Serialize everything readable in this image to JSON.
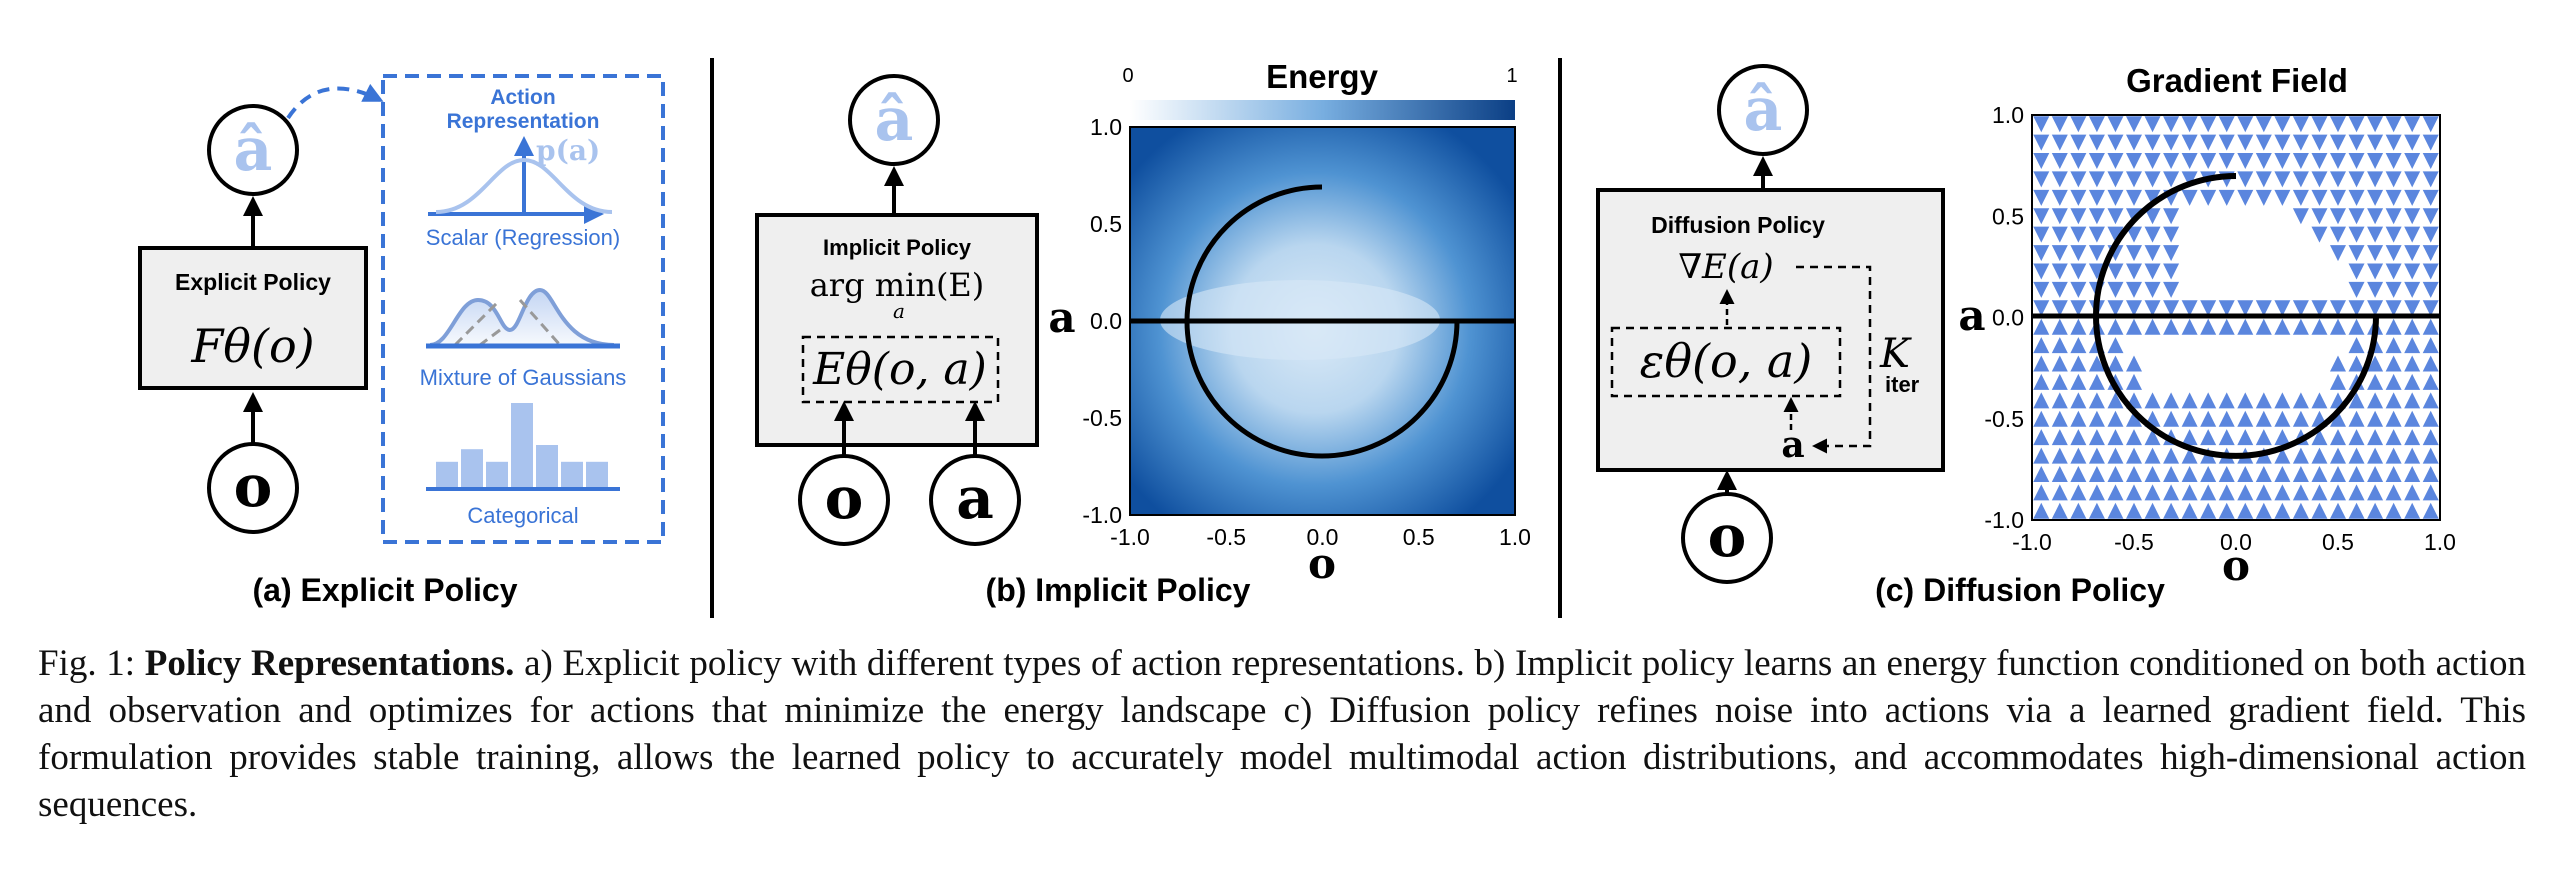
{
  "panels": {
    "a": {
      "caption": "(a) Explicit Policy",
      "box_title": "Explicit Policy",
      "formula": "Fθ(o)",
      "output_node": "â",
      "input_node": "o",
      "representation_title_1": "Action",
      "representation_title_2": "Representation",
      "p_label": "p(a)",
      "rep_labels": [
        "Scalar (Regression)",
        "Mixture of Gaussians",
        "Categorical"
      ],
      "categorical_bar_values": [
        0.3,
        0.45,
        0.3,
        1.0,
        0.5,
        0.3,
        0.3
      ]
    },
    "b": {
      "caption": "(b) Implicit Policy",
      "box_title": "Implicit Policy",
      "argmin": "arg min(E)",
      "argmin_sub": "a",
      "energy_formula": "Eθ(o, a)",
      "output_node": "â",
      "input_nodes": [
        "o",
        "a"
      ],
      "plot": {
        "title": "Energy",
        "colorbar_min": "0",
        "colorbar_max": "1",
        "xlabel": "o",
        "ylabel": "a",
        "xticks": [
          "-1.0",
          "-0.5",
          "0.0",
          "0.5",
          "1.0"
        ],
        "yticks": [
          "1.0",
          "0.5",
          "0.0",
          "-0.5",
          "-1.0"
        ]
      }
    },
    "c": {
      "caption": "(c) Diffusion Policy",
      "box_title": "Diffusion Policy",
      "grad_formula": "∇E(a)",
      "eps_formula": "εθ(o, a)",
      "iter_k": "K",
      "iter_sub": "iter",
      "loop_var": "a",
      "output_node": "â",
      "input_node": "o",
      "plot": {
        "title": "Gradient Field",
        "xlabel": "o",
        "ylabel": "a",
        "xticks": [
          "-1.0",
          "-0.5",
          "0.0",
          "0.5",
          "1.0"
        ],
        "yticks": [
          "1.0",
          "0.5",
          "0.0",
          "-0.5",
          "-1.0"
        ]
      }
    }
  },
  "caption": {
    "label": "Fig. 1:",
    "bold": "Policy Representations.",
    "text": " a) Explicit policy with different types of action representations. b) Implicit policy learns an energy function conditioned on both action and observation and optimizes for actions that minimize the energy landscape c) Diffusion policy refines noise into actions via a learned gradient field. This formulation provides stable training, allows the learned policy to accurately model multimodal action distributions, and accommodates high-dimensional action sequences."
  },
  "colors": {
    "accent": "#3a74d6",
    "light_accent": "#a9c3ee",
    "box_fill": "#efefef",
    "heat_dark": "#1e5fae",
    "heat_light": "#dbeaf7",
    "arrow_fill": "#5b86de"
  }
}
